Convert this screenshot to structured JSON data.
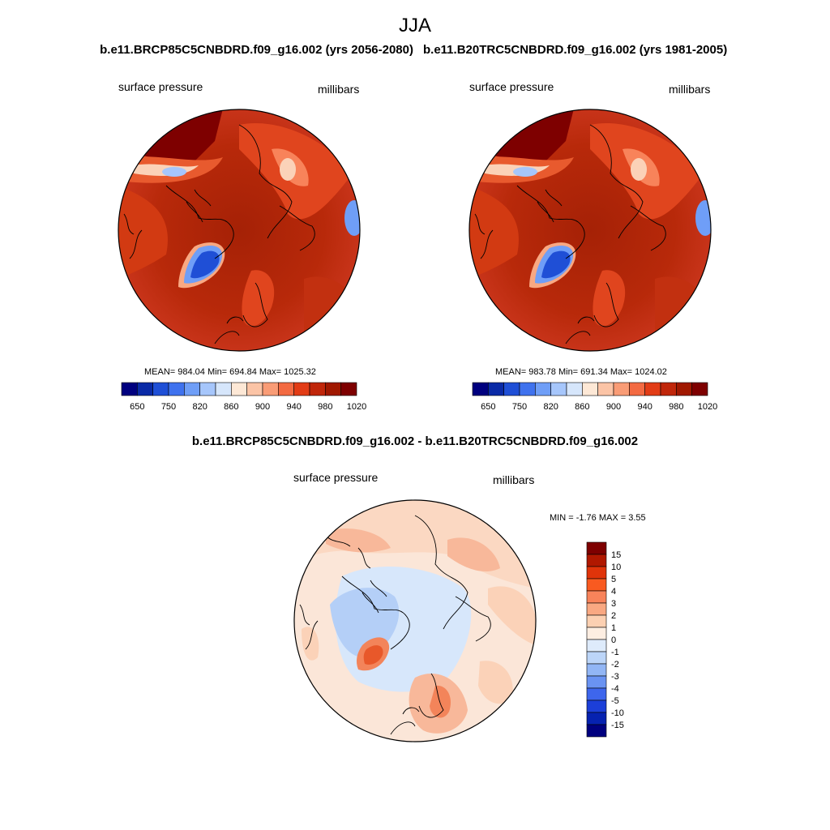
{
  "season_title": "JJA",
  "panels": [
    {
      "title": "b.e11.BRCP85C5CNBDRD.f09_g16.002 (yrs 2056-2080)",
      "variable": "surface pressure",
      "units": "millibars",
      "stats": "MEAN= 984.04  Min= 694.84  Max= 1025.32"
    },
    {
      "title": "b.e11.B20TRC5CNBDRD.f09_g16.002 (yrs 1981-2005)",
      "variable": "surface pressure",
      "units": "millibars",
      "stats": "MEAN= 983.78  Min= 691.34  Max= 1024.02"
    }
  ],
  "diff": {
    "title": "b.e11.BRCP85C5CNBDRD.f09_g16.002 - b.e11.B20TRC5CNBDRD.f09_g16.002",
    "variable": "surface pressure",
    "units": "millibars",
    "stats": "MIN =  -1.76 MAX =   3.55"
  },
  "colorbar_main": {
    "labels": [
      "650",
      "750",
      "820",
      "860",
      "900",
      "940",
      "980",
      "1020"
    ],
    "colors": [
      "#00007f",
      "#0a2aa6",
      "#1f4fd6",
      "#3f72ee",
      "#6f9ef7",
      "#a6c6fb",
      "#d6e6fb",
      "#fde8d6",
      "#fbc4a6",
      "#f99c76",
      "#f36a42",
      "#e23c16",
      "#c0260a",
      "#a01800",
      "#7e0000"
    ]
  },
  "colorbar_diff": {
    "labels": [
      "15",
      "10",
      "5",
      "4",
      "3",
      "2",
      "1",
      "0",
      "-1",
      "-2",
      "-3",
      "-4",
      "-5",
      "-10",
      "-15"
    ],
    "colors": [
      "#7e0000",
      "#b01800",
      "#e0340a",
      "#f95a20",
      "#f8835a",
      "#f9a882",
      "#fcd0b2",
      "#fdeee2",
      "#deebfb",
      "#bcd5f8",
      "#92b6f5",
      "#6a93f2",
      "#3e66ec",
      "#1c3fd8",
      "#0622b0",
      "#00007f"
    ]
  },
  "colors": {
    "land_dark": "#a82408",
    "land_mid": "#c93415",
    "ocean_high": "#a52106",
    "low_blue": "#2a5ee0",
    "diff_pos": "#f6b596",
    "diff_neg": "#cfe2fa",
    "diff_neu": "#fbe6d8"
  }
}
